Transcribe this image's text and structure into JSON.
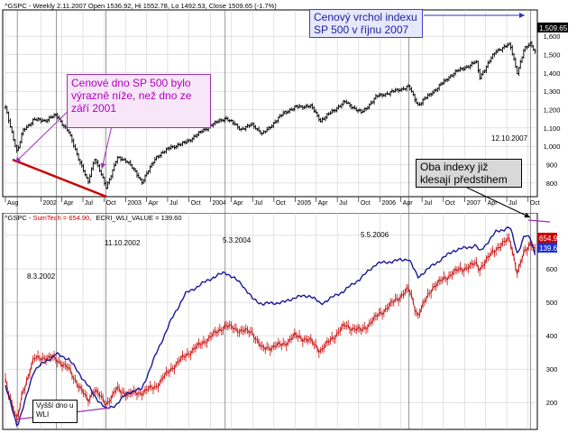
{
  "header_top": "^GSPC - Weekly 2.11.2007 Open 1536.92, Hi 1552.78, Lo 1492.53, Close 1509.65 (-1.7%)",
  "header_bottom_prefix": "^GSPC - ",
  "header_bottom_sumtech": "SumTech = 654.90,",
  "header_bottom_wli": "ECRI_WLI_VALUE = 139.60",
  "price_tag_top": "1,509.65",
  "price_tag_sumtech": "654.9",
  "price_tag_wli": "139.6",
  "annotations": {
    "callout_top_left": "Cenové dno SP 500 bylo výrazně níže, než dno ze září 2001",
    "callout_top_right": "Cenový vrchol indexu SP 500 v říjnu 2007",
    "callout_right": "Oba indexy již klesají předstihem",
    "callout_bottom_left": "Vyšší dno u WLI",
    "date_top": "12.10.2007",
    "date_1": "8.3.2002",
    "date_2": "11.10.2002",
    "date_3": "5.3.2004",
    "date_4": "5.5.2006"
  },
  "colors": {
    "sp500_bars": "#000000",
    "sumtech": "#cc0000",
    "wli": "#1a1a99",
    "arrow_magenta": "#a030b0",
    "arrow_blue": "#3030c0",
    "trend_red": "#cc0000",
    "grid": "#c8c8c8"
  },
  "chart_data": [
    {
      "type": "bar",
      "subtype": "ohlc",
      "y_ticks": [
        "800",
        "900",
        "1,000",
        "1,100",
        "1,200",
        "1,300",
        "1,400",
        "1,500",
        "1,600"
      ],
      "ylim": [
        760,
        1650
      ],
      "x_ticks": [
        "Aug",
        "2002",
        "Apr",
        "Jul",
        "Oct",
        "2003",
        "Apr",
        "Jul",
        "Oct",
        "2004",
        "Apr",
        "Jul",
        "Oct",
        "2005",
        "Apr",
        "Jul",
        "Oct",
        "2006",
        "Apr",
        "Jul",
        "Oct",
        "2007",
        "Apr",
        "Jul",
        "Oct"
      ],
      "x_start": "2001-08-01",
      "x_end": "2007-11-02",
      "series": [
        {
          "values": [
            [
              "2001-08-01",
              1210
            ],
            [
              "2001-09-21",
              965
            ],
            [
              "2001-10-15",
              1085
            ],
            [
              "2001-12-01",
              1145
            ],
            [
              "2002-01-15",
              1140
            ],
            [
              "2002-03-08",
              1170
            ],
            [
              "2002-05-01",
              1075
            ],
            [
              "2002-07-23",
              800
            ],
            [
              "2002-08-20",
              940
            ],
            [
              "2002-10-09",
              775
            ],
            [
              "2002-11-25",
              935
            ],
            [
              "2003-01-10",
              920
            ],
            [
              "2003-03-11",
              805
            ],
            [
              "2003-05-15",
              945
            ],
            [
              "2003-07-15",
              995
            ],
            [
              "2003-09-15",
              1020
            ],
            [
              "2003-12-31",
              1112
            ],
            [
              "2004-03-05",
              1155
            ],
            [
              "2004-05-15",
              1092
            ],
            [
              "2004-07-01",
              1120
            ],
            [
              "2004-08-12",
              1065
            ],
            [
              "2004-11-15",
              1185
            ],
            [
              "2004-12-31",
              1212
            ],
            [
              "2005-03-07",
              1222
            ],
            [
              "2005-04-20",
              1140
            ],
            [
              "2005-08-01",
              1242
            ],
            [
              "2005-10-15",
              1182
            ],
            [
              "2005-12-15",
              1270
            ],
            [
              "2006-05-05",
              1325
            ],
            [
              "2006-06-13",
              1225
            ],
            [
              "2006-08-15",
              1295
            ],
            [
              "2006-11-15",
              1400
            ],
            [
              "2007-02-20",
              1460
            ],
            [
              "2007-03-06",
              1375
            ],
            [
              "2007-05-15",
              1520
            ],
            [
              "2007-07-15",
              1555
            ],
            [
              "2007-08-16",
              1400
            ],
            [
              "2007-09-15",
              1530
            ],
            [
              "2007-10-12",
              1565
            ],
            [
              "2007-11-02",
              1509.65
            ]
          ]
        }
      ]
    },
    {
      "type": "line",
      "y_ticks": [
        "200",
        "300",
        "400",
        "500",
        "600",
        "700"
      ],
      "ylim": [
        125,
        735
      ],
      "series": [
        {
          "name": "SumTech",
          "values": [
            [
              "2001-08-01",
              265
            ],
            [
              "2001-09-21",
              145
            ],
            [
              "2001-10-15",
              230
            ],
            [
              "2001-12-01",
              330
            ],
            [
              "2002-01-15",
              335
            ],
            [
              "2002-03-08",
              330
            ],
            [
              "2002-05-01",
              300
            ],
            [
              "2002-07-23",
              205
            ],
            [
              "2002-08-20",
              240
            ],
            [
              "2002-10-09",
              195
            ],
            [
              "2002-11-25",
              240
            ],
            [
              "2003-01-10",
              225
            ],
            [
              "2003-03-11",
              230
            ],
            [
              "2003-05-15",
              250
            ],
            [
              "2003-07-15",
              300
            ],
            [
              "2003-09-15",
              340
            ],
            [
              "2003-12-31",
              395
            ],
            [
              "2004-03-05",
              430
            ],
            [
              "2004-05-15",
              415
            ],
            [
              "2004-07-01",
              410
            ],
            [
              "2004-08-12",
              360
            ],
            [
              "2004-11-15",
              375
            ],
            [
              "2004-12-31",
              400
            ],
            [
              "2005-03-07",
              385
            ],
            [
              "2005-04-20",
              355
            ],
            [
              "2005-08-01",
              430
            ],
            [
              "2005-10-15",
              415
            ],
            [
              "2005-12-15",
              455
            ],
            [
              "2006-05-05",
              540
            ],
            [
              "2006-06-13",
              460
            ],
            [
              "2006-08-15",
              545
            ],
            [
              "2006-11-15",
              590
            ],
            [
              "2007-02-20",
              615
            ],
            [
              "2007-03-06",
              600
            ],
            [
              "2007-05-15",
              660
            ],
            [
              "2007-07-15",
              690
            ],
            [
              "2007-08-16",
              585
            ],
            [
              "2007-09-15",
              650
            ],
            [
              "2007-10-12",
              680
            ],
            [
              "2007-11-02",
              654.9
            ]
          ]
        },
        {
          "name": "ECRI_WLI_VALUE",
          "values": [
            [
              "2001-08-01",
              250
            ],
            [
              "2001-09-21",
              130
            ],
            [
              "2001-10-15",
              180
            ],
            [
              "2001-12-01",
              295
            ],
            [
              "2002-01-15",
              320
            ],
            [
              "2002-03-08",
              345
            ],
            [
              "2002-05-01",
              330
            ],
            [
              "2002-07-23",
              250
            ],
            [
              "2002-08-20",
              220
            ],
            [
              "2002-10-09",
              180
            ],
            [
              "2002-11-25",
              195
            ],
            [
              "2003-01-10",
              230
            ],
            [
              "2003-03-11",
              240
            ],
            [
              "2003-05-15",
              350
            ],
            [
              "2003-07-15",
              445
            ],
            [
              "2003-09-15",
              525
            ],
            [
              "2003-12-31",
              570
            ],
            [
              "2004-03-05",
              590
            ],
            [
              "2004-05-15",
              555
            ],
            [
              "2004-07-01",
              510
            ],
            [
              "2004-08-12",
              495
            ],
            [
              "2004-11-15",
              500
            ],
            [
              "2004-12-31",
              515
            ],
            [
              "2005-03-07",
              520
            ],
            [
              "2005-04-20",
              495
            ],
            [
              "2005-08-01",
              535
            ],
            [
              "2005-10-15",
              575
            ],
            [
              "2005-12-15",
              615
            ],
            [
              "2006-05-05",
              630
            ],
            [
              "2006-06-13",
              575
            ],
            [
              "2006-08-15",
              610
            ],
            [
              "2006-11-15",
              655
            ],
            [
              "2007-02-20",
              670
            ],
            [
              "2007-03-06",
              650
            ],
            [
              "2007-05-15",
              710
            ],
            [
              "2007-07-15",
              725
            ],
            [
              "2007-08-16",
              645
            ],
            [
              "2007-09-15",
              700
            ],
            [
              "2007-10-12",
              690
            ],
            [
              "2007-11-02",
              639.6
            ]
          ]
        }
      ]
    }
  ]
}
